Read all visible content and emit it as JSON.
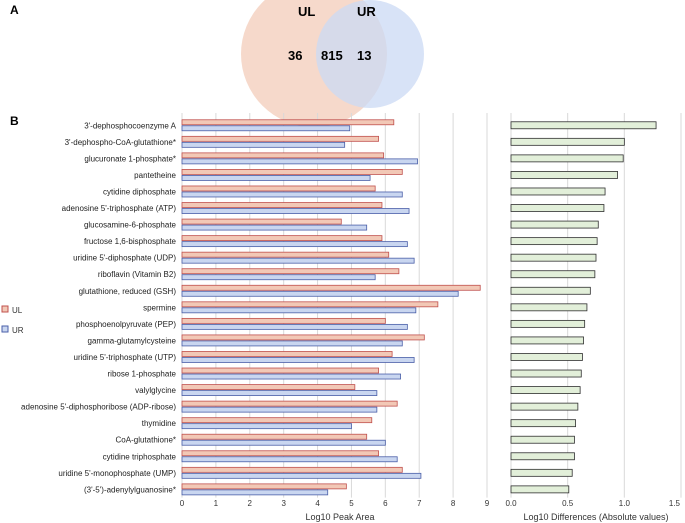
{
  "panel_labels": {
    "a": "A",
    "b": "B"
  },
  "colors": {
    "ul_fill": "#f2c8b6",
    "ul_stroke": "#c0504d",
    "ur_fill": "#c9d6f0",
    "ur_stroke": "#4a5fa8",
    "venn_ul": "#f4d2c2",
    "venn_ur": "#cbd9f4",
    "diff_fill": "#e2efd9",
    "diff_stroke": "#2f2f2f",
    "grid": "#d9d9d9"
  },
  "chart_data": [
    {
      "type": "venn",
      "sets": [
        {
          "name": "UL",
          "only": 36
        },
        {
          "name": "UR",
          "only": 13
        }
      ],
      "intersection": 815
    },
    {
      "type": "bar",
      "orientation": "horizontal",
      "xlabel": "Log10 Peak Area",
      "xlim": [
        0,
        9
      ],
      "xticks": [
        0,
        1,
        2,
        3,
        4,
        5,
        6,
        7,
        8,
        9
      ],
      "grid": true,
      "legend": "left",
      "categories": [
        "3'-dephosphocoenzyme A",
        "3'-dephospho-CoA-glutathione*",
        "glucuronate 1-phosphate*",
        "pantetheine",
        "cytidine diphosphate",
        "adenosine 5'-triphosphate (ATP)",
        "glucosamine-6-phosphate",
        "fructose 1,6-bisphosphate",
        "uridine 5'-diphosphate (UDP)",
        "riboflavin (Vitamin B2)",
        "glutathione, reduced (GSH)",
        "spermine",
        "phosphoenolpyruvate (PEP)",
        "gamma-glutamylcysteine",
        "uridine 5'-triphosphate (UTP)",
        "ribose 1-phosphate",
        "valylglycine",
        "adenosine 5'-diphosphoribose (ADP-ribose)",
        "thymidine",
        "CoA-glutathione*",
        "cytidine triphosphate",
        "uridine 5'-monophosphate (UMP)",
        "(3'-5')-adenylylguanosine*"
      ],
      "series": [
        {
          "name": "UL",
          "values": [
            6.25,
            5.8,
            5.95,
            6.5,
            5.7,
            5.9,
            4.7,
            5.9,
            6.1,
            6.4,
            8.8,
            7.55,
            6.0,
            7.15,
            6.2,
            5.8,
            5.1,
            6.35,
            5.6,
            5.45,
            5.8,
            6.5,
            4.85
          ]
        },
        {
          "name": "UR",
          "values": [
            4.95,
            4.8,
            6.95,
            5.55,
            6.5,
            6.7,
            5.45,
            6.65,
            6.85,
            5.7,
            8.15,
            6.9,
            6.65,
            6.5,
            6.85,
            6.45,
            5.75,
            5.75,
            5.0,
            6.0,
            6.35,
            7.05,
            4.3
          ]
        }
      ]
    },
    {
      "type": "bar",
      "orientation": "horizontal",
      "xlabel": "Log10 Differences (Absolute values)",
      "xlim": [
        0,
        1.5
      ],
      "xticks": [
        "0.0",
        "0.5",
        "1.0",
        "1.5"
      ],
      "grid": true,
      "values": [
        1.28,
        1.0,
        0.99,
        0.94,
        0.83,
        0.82,
        0.77,
        0.76,
        0.75,
        0.74,
        0.7,
        0.67,
        0.65,
        0.64,
        0.63,
        0.62,
        0.61,
        0.59,
        0.57,
        0.56,
        0.56,
        0.54,
        0.51
      ]
    }
  ]
}
